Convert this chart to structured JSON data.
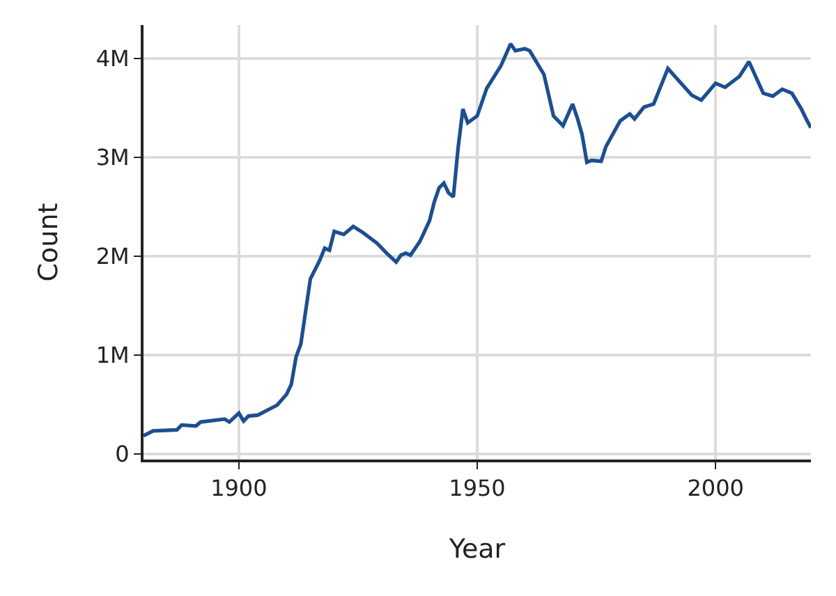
{
  "chart_data": {
    "type": "line",
    "xlabel": "Year",
    "ylabel": "Count",
    "x": [
      1880,
      1882,
      1887,
      1888,
      1891,
      1892,
      1897,
      1898,
      1900,
      1901,
      1902,
      1904,
      1908,
      1910,
      1911,
      1912,
      1913,
      1915,
      1917,
      1918,
      1919,
      1920,
      1922,
      1924,
      1926,
      1929,
      1931,
      1933,
      1934,
      1935,
      1936,
      1938,
      1940,
      1941,
      1942,
      1943,
      1944,
      1945,
      1946,
      1947,
      1948,
      1950,
      1952,
      1955,
      1957,
      1958,
      1960,
      1961,
      1964,
      1966,
      1968,
      1970,
      1971,
      1972,
      1973,
      1974,
      1976,
      1977,
      1980,
      1982,
      1983,
      1985,
      1987,
      1990,
      1995,
      1997,
      2000,
      2002,
      2005,
      2007,
      2010,
      2012,
      2014,
      2016,
      2018,
      2019,
      2020
    ],
    "series": [
      {
        "color": "#1c4f8f",
        "values": [
          180000,
          230000,
          240000,
          290000,
          280000,
          320000,
          350000,
          320000,
          410000,
          330000,
          380000,
          390000,
          490000,
          600000,
          700000,
          980000,
          1110000,
          1770000,
          1960000,
          2080000,
          2060000,
          2250000,
          2220000,
          2300000,
          2240000,
          2130000,
          2030000,
          1940000,
          2010000,
          2030000,
          2010000,
          2150000,
          2360000,
          2550000,
          2690000,
          2740000,
          2640000,
          2600000,
          3100000,
          3490000,
          3350000,
          3420000,
          3700000,
          3930000,
          4150000,
          4080000,
          4100000,
          4080000,
          3840000,
          3420000,
          3320000,
          3540000,
          3400000,
          3230000,
          2950000,
          2970000,
          2960000,
          3110000,
          3370000,
          3440000,
          3390000,
          3510000,
          3540000,
          3900000,
          3630000,
          3580000,
          3750000,
          3710000,
          3820000,
          3970000,
          3650000,
          3620000,
          3690000,
          3650000,
          3490000,
          3390000,
          3300000
        ]
      }
    ],
    "xlim": [
      1880,
      2020
    ],
    "xticks": [
      1900,
      1950,
      2000
    ],
    "ylim": [
      -60000,
      4340000
    ],
    "yticks": [
      {
        "value": 0,
        "label": "0"
      },
      {
        "value": 1000000,
        "label": "1M"
      },
      {
        "value": 2000000,
        "label": "2M"
      },
      {
        "value": 3000000,
        "label": "3M"
      },
      {
        "value": 4000000,
        "label": "4M"
      }
    ],
    "grid": true,
    "marker": "none",
    "line_style": "solid"
  }
}
